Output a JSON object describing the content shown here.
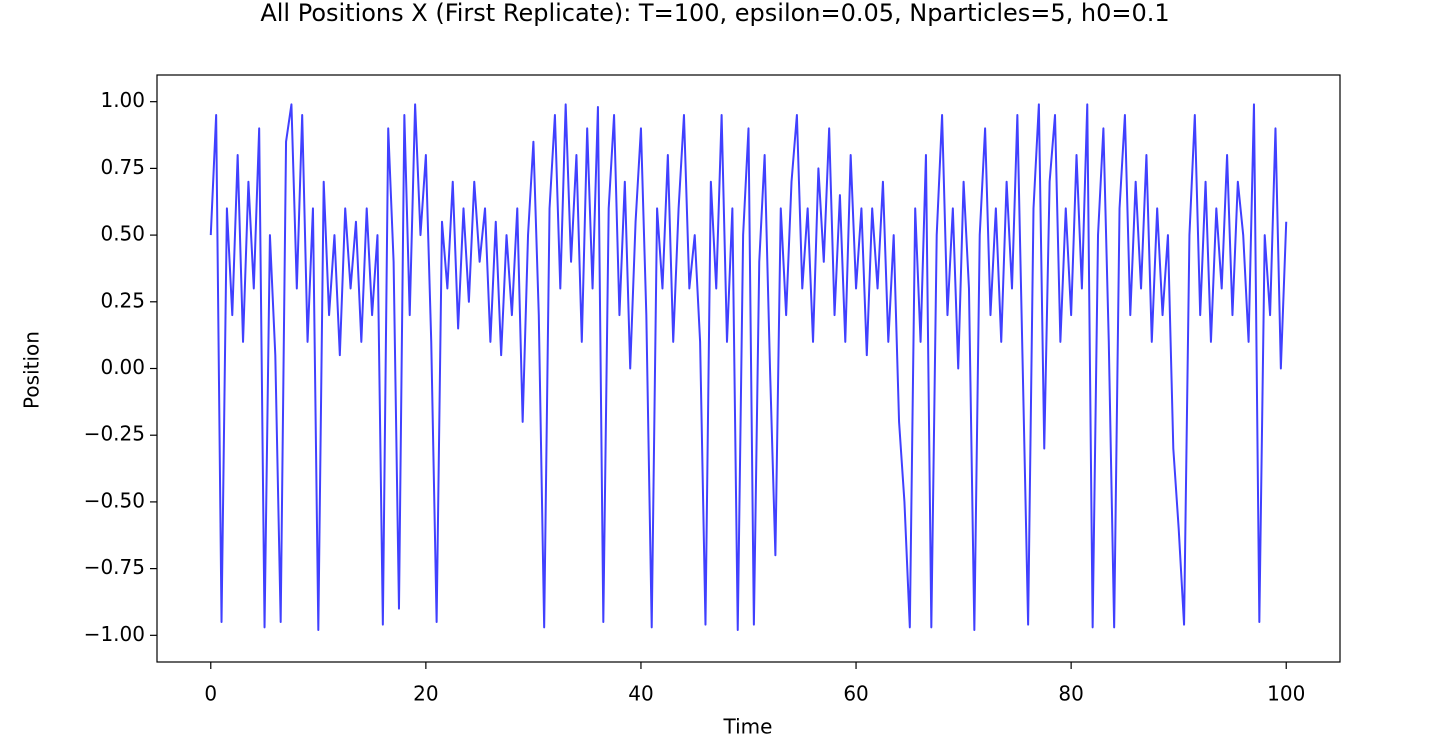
{
  "chart_data": {
    "type": "line",
    "title": "All Positions X (First Replicate): T=100, epsilon=0.05, Nparticles=5, h0=0.1",
    "x_label": "Time",
    "y_label": "Position",
    "xlim": [
      -5,
      105
    ],
    "ylim": [
      -1.1,
      1.1
    ],
    "xticks": [
      0,
      20,
      40,
      60,
      80,
      100
    ],
    "yticks": [
      {
        "value": -1,
        "label": "−1.00"
      },
      {
        "value": -0.75,
        "label": "−0.75"
      },
      {
        "value": -0.5,
        "label": "−0.50"
      },
      {
        "value": -0.25,
        "label": "−0.25"
      },
      {
        "value": 0,
        "label": "0.00"
      },
      {
        "value": 0.25,
        "label": "0.25"
      },
      {
        "value": 0.5,
        "label": "0.50"
      },
      {
        "value": 0.75,
        "label": "0.75"
      },
      {
        "value": 1,
        "label": "1.00"
      }
    ],
    "x": [
      0,
      0.5,
      1,
      1.5,
      2,
      2.5,
      3,
      3.5,
      4,
      4.5,
      5,
      5.5,
      6,
      6.5,
      7,
      7.5,
      8,
      8.5,
      9,
      9.5,
      10,
      10.5,
      11,
      11.5,
      12,
      12.5,
      13,
      13.5,
      14,
      14.5,
      15,
      15.5,
      16,
      16.5,
      17,
      17.5,
      18,
      18.5,
      19,
      19.5,
      20,
      20.5,
      21,
      21.5,
      22,
      22.5,
      23,
      23.5,
      24,
      24.5,
      25,
      25.5,
      26,
      26.5,
      27,
      27.5,
      28,
      28.5,
      29,
      29.5,
      30,
      30.5,
      31,
      31.5,
      32,
      32.5,
      33,
      33.5,
      34,
      34.5,
      35,
      35.5,
      36,
      36.5,
      37,
      37.5,
      38,
      38.5,
      39,
      39.5,
      40,
      40.5,
      41,
      41.5,
      42,
      42.5,
      43,
      43.5,
      44,
      44.5,
      45,
      45.5,
      46,
      46.5,
      47,
      47.5,
      48,
      48.5,
      49,
      49.5,
      50,
      50.5,
      51,
      51.5,
      52,
      52.5,
      53,
      53.5,
      54,
      54.5,
      55,
      55.5,
      56,
      56.5,
      57,
      57.5,
      58,
      58.5,
      59,
      59.5,
      60,
      60.5,
      61,
      61.5,
      62,
      62.5,
      63,
      63.5,
      64,
      64.5,
      65,
      65.5,
      66,
      66.5,
      67,
      67.5,
      68,
      68.5,
      69,
      69.5,
      70,
      70.5,
      71,
      71.5,
      72,
      72.5,
      73,
      73.5,
      74,
      74.5,
      75,
      75.5,
      76,
      76.5,
      77,
      77.5,
      78,
      78.5,
      79,
      79.5,
      80,
      80.5,
      81,
      81.5,
      82,
      82.5,
      83,
      83.5,
      84,
      84.5,
      85,
      85.5,
      86,
      86.5,
      87,
      87.5,
      88,
      88.5,
      89,
      89.5,
      90,
      90.5,
      91,
      91.5,
      92,
      92.5,
      93,
      93.5,
      94,
      94.5,
      95,
      95.5,
      96,
      96.5,
      97,
      97.5,
      98,
      98.5,
      99,
      99.5,
      100
    ],
    "series": [
      {
        "color": "#0000ff",
        "opacity": 0.75,
        "values": [
          0.5,
          0.95,
          -0.95,
          0.6,
          0.2,
          0.8,
          0.1,
          0.7,
          0.3,
          0.9,
          -0.97,
          0.5,
          0.05,
          -0.95,
          0.85,
          0.99,
          0.3,
          0.95,
          0.1,
          0.6,
          -0.98,
          0.7,
          0.2,
          0.5,
          0.05,
          0.6,
          0.3,
          0.55,
          0.1,
          0.6,
          0.2,
          0.5,
          -0.96,
          0.9,
          0.4,
          -0.9,
          0.95,
          0.2,
          0.99,
          0.5,
          0.8,
          0.1,
          -0.95,
          0.55,
          0.3,
          0.7,
          0.15,
          0.6,
          0.25,
          0.7,
          0.4,
          0.6,
          0.1,
          0.55,
          0.05,
          0.5,
          0.2,
          0.6,
          -0.2,
          0.5,
          0.85,
          0.2,
          -0.97,
          0.6,
          0.95,
          0.3,
          0.99,
          0.4,
          0.8,
          0.1,
          0.9,
          0.3,
          0.98,
          -0.95,
          0.6,
          0.95,
          0.2,
          0.7,
          0.0,
          0.55,
          0.9,
          0.2,
          -0.97,
          0.6,
          0.3,
          0.8,
          0.1,
          0.6,
          0.95,
          0.3,
          0.5,
          0.1,
          -0.96,
          0.7,
          0.3,
          0.95,
          0.1,
          0.6,
          -0.98,
          0.5,
          0.9,
          -0.96,
          0.4,
          0.8,
          0.0,
          -0.7,
          0.6,
          0.2,
          0.7,
          0.95,
          0.3,
          0.6,
          0.1,
          0.75,
          0.4,
          0.9,
          0.2,
          0.65,
          0.1,
          0.8,
          0.3,
          0.6,
          0.05,
          0.6,
          0.3,
          0.7,
          0.1,
          0.5,
          -0.2,
          -0.5,
          -0.97,
          0.6,
          0.1,
          0.8,
          -0.97,
          0.5,
          0.95,
          0.2,
          0.6,
          0.0,
          0.7,
          0.3,
          -0.98,
          0.5,
          0.9,
          0.2,
          0.6,
          0.1,
          0.7,
          0.3,
          0.95,
          0.0,
          -0.96,
          0.6,
          0.99,
          -0.3,
          0.7,
          0.95,
          0.1,
          0.6,
          0.2,
          0.8,
          0.3,
          0.99,
          -0.97,
          0.5,
          0.9,
          0.1,
          -0.97,
          0.6,
          0.95,
          0.2,
          0.7,
          0.3,
          0.8,
          0.1,
          0.6,
          0.2,
          0.5,
          -0.3,
          -0.6,
          -0.96,
          0.5,
          0.95,
          0.2,
          0.7,
          0.1,
          0.6,
          0.3,
          0.8,
          0.2,
          0.7,
          0.5,
          0.1,
          0.99,
          -0.95,
          0.5,
          0.2,
          0.9,
          0.0,
          0.55
        ]
      }
    ]
  }
}
